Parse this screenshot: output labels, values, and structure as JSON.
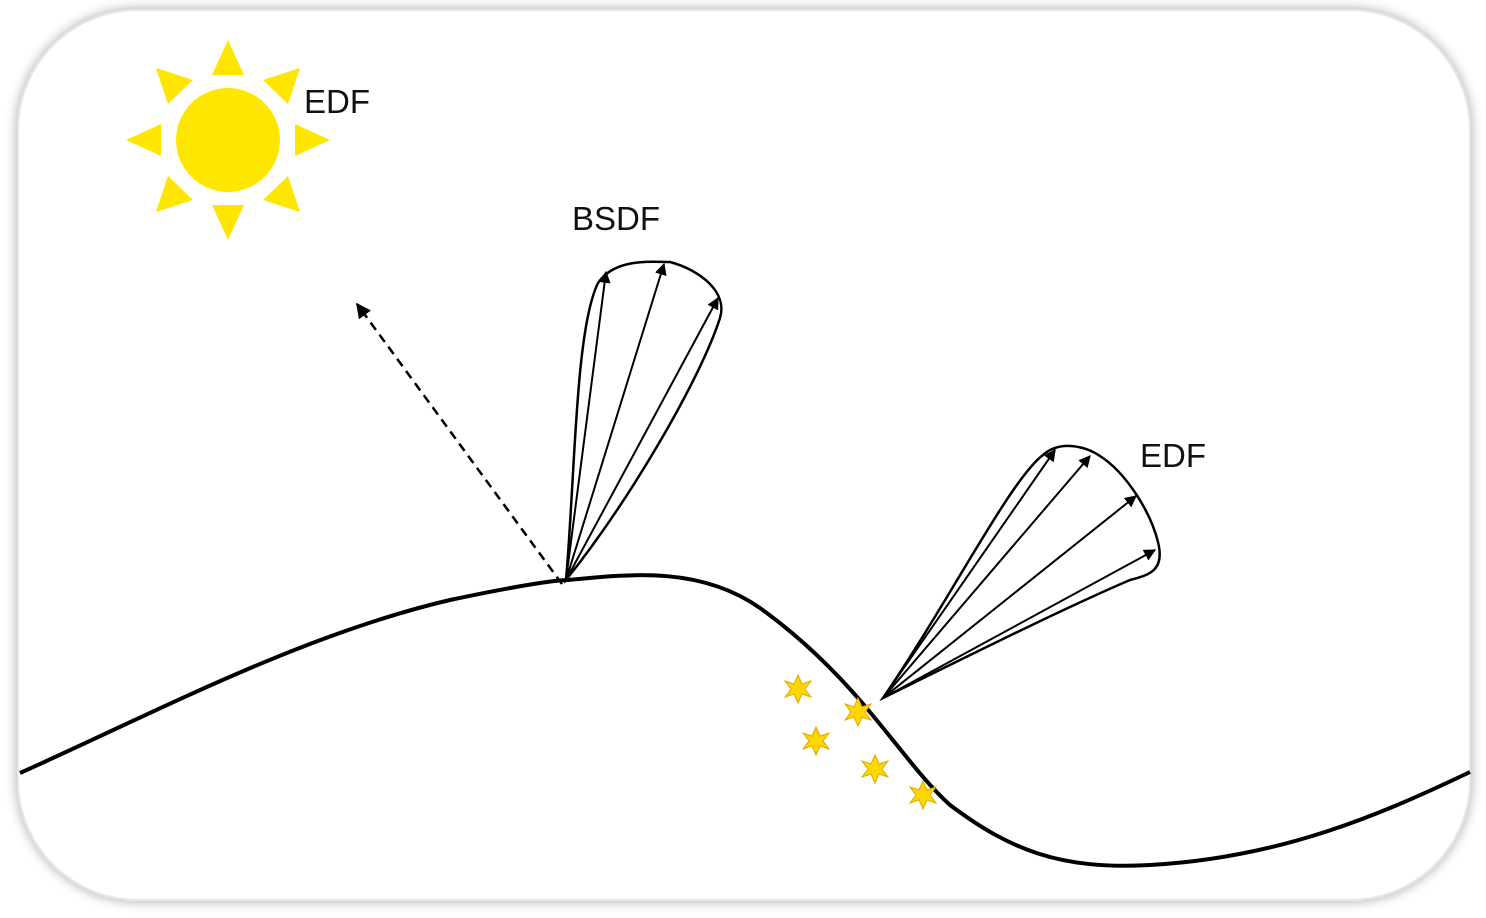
{
  "labels": {
    "sun_edf": "EDF",
    "bsdf": "BSDF",
    "surface_edf": "EDF"
  },
  "colors": {
    "sun": "#FFE600",
    "sparkle": "#FFD700",
    "line": "#000000",
    "background": "#FFFFFF"
  },
  "icons": {
    "sun": "sun-icon",
    "sparkle": "sparkle-icon"
  }
}
